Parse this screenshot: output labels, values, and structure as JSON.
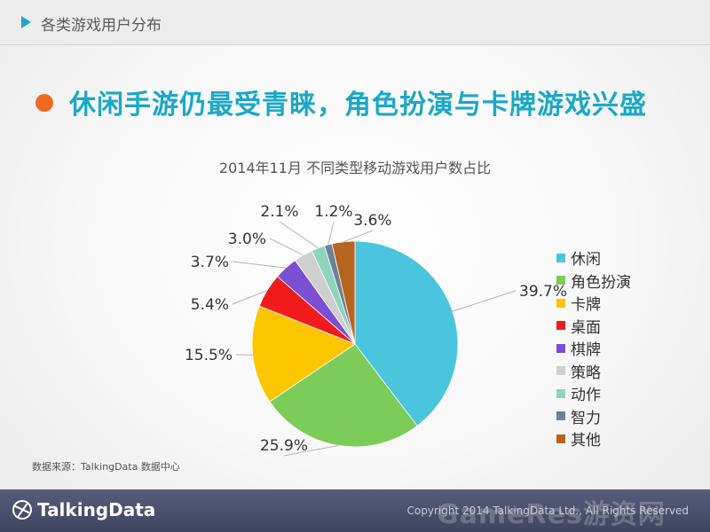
{
  "header": {
    "section_title": "各类游戏用户分布"
  },
  "headline": "休闲手游仍最受青睐，角色扮演与卡牌游戏兴盛",
  "chart_data": {
    "type": "pie",
    "title": "2014年11月 不同类型移动游戏用户数占比",
    "categories": [
      "休闲",
      "角色扮演",
      "卡牌",
      "桌面",
      "棋牌",
      "策略",
      "动作",
      "智力",
      "其他"
    ],
    "values": [
      39.7,
      25.9,
      15.5,
      5.4,
      3.7,
      3.0,
      2.1,
      1.2,
      3.6
    ],
    "labels": [
      "39.7%",
      "25.9%",
      "15.5%",
      "5.4%",
      "3.7%",
      "3.0%",
      "2.1%",
      "1.2%",
      "3.6%"
    ],
    "colors": [
      "#4bc4dd",
      "#7ccc5a",
      "#fec501",
      "#f21b1b",
      "#7a4fd1",
      "#cfcfcf",
      "#8fd4bd",
      "#6f8196",
      "#b5651d"
    ],
    "legend_position": "right",
    "start": "12 o'clock",
    "direction": "clockwise"
  },
  "source": "数据来源：TalkingData 数据中心",
  "footer": {
    "logo": "TalkingData",
    "copyright": "Copyright 2014 TalkingData Ltd., All Rights Reserved",
    "watermark": "GameRes游资网"
  }
}
